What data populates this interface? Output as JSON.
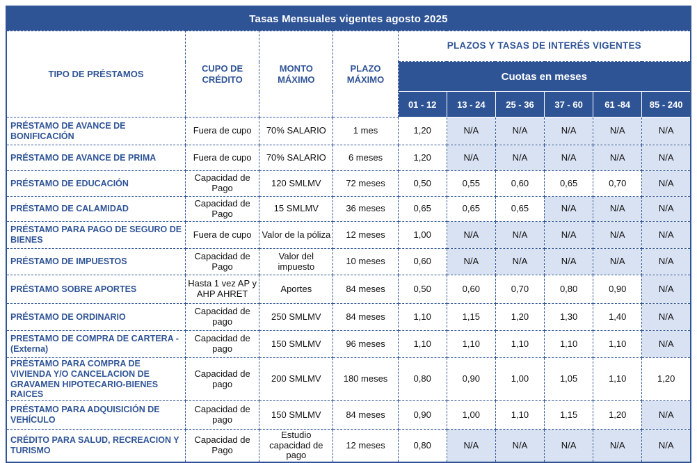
{
  "title": "Tasas Mensuales vigentes agosto 2025",
  "colors": {
    "header_blue": "#2F5496",
    "na_cell_bg": "#D9E2F3",
    "loan_text_blue": "#2F5496",
    "border_blue": "#2F5496"
  },
  "table": {
    "columns": {
      "tipo": "TIPO DE PRÉSTAMOS",
      "cupo": "CUPO DE CRÉDITO",
      "monto": "MONTO MÁXIMO",
      "plazo": "PLAZO MÁXIMO",
      "plazos_banner": "PLAZOS Y TASAS DE INTERÉS VIGENTES",
      "cuotas_banner": "Cuotas en meses",
      "ranges": [
        "01 - 12",
        "13 - 24",
        "25 - 36",
        "37 - 60",
        "61 -84",
        "85 - 240"
      ]
    },
    "rows": [
      {
        "name": "PRÉSTAMO DE AVANCE DE BONIFICACIÓN",
        "cupo": "Fuera de cupo",
        "monto": "70% SALARIO",
        "plazo": "1 mes",
        "rates": [
          "1,20",
          "N/A",
          "N/A",
          "N/A",
          "N/A",
          "N/A"
        ]
      },
      {
        "name": "PRÉSTAMO DE AVANCE DE PRIMA",
        "cupo": "Fuera de cupo",
        "monto": "70% SALARIO",
        "plazo": "6 meses",
        "rates": [
          "1,20",
          "N/A",
          "N/A",
          "N/A",
          "N/A",
          "N/A"
        ]
      },
      {
        "name": "PRÉSTAMO DE EDUCACIÓN",
        "cupo": "Capacidad de Pago",
        "monto": "120 SMLMV",
        "plazo": "72 meses",
        "rates": [
          "0,50",
          "0,55",
          "0,60",
          "0,65",
          "0,70",
          "N/A"
        ]
      },
      {
        "name": "PRÉSTAMO DE CALAMIDAD",
        "cupo": "Capacidad de Pago",
        "monto": "15 SMLMV",
        "plazo": "36 meses",
        "rates": [
          "0,65",
          "0,65",
          "0,65",
          "N/A",
          "N/A",
          "N/A"
        ]
      },
      {
        "name": "PRÉSTAMO PARA PAGO DE SEGURO DE BIENES",
        "cupo": "Fuera de cupo",
        "monto": "Valor de la póliza",
        "plazo": "12 meses",
        "rates": [
          "1,00",
          "N/A",
          "N/A",
          "N/A",
          "N/A",
          "N/A"
        ]
      },
      {
        "name": "PRÉSTAMO DE IMPUESTOS",
        "cupo": "Capacidad de Pago",
        "monto": "Valor del impuesto",
        "plazo": "10 meses",
        "rates": [
          "0,60",
          "N/A",
          "N/A",
          "N/A",
          "N/A",
          "N/A"
        ]
      },
      {
        "name": "PRÉSTAMO SOBRE APORTES",
        "cupo": "Hasta 1 vez AP y AHP AHRET",
        "monto": "Aportes",
        "plazo": "84 meses",
        "rates": [
          "0,50",
          "0,60",
          "0,70",
          "0,80",
          "0,90",
          "N/A"
        ]
      },
      {
        "name": "PRÉSTAMO DE ORDINARIO",
        "cupo": "Capacidad de pago",
        "monto": "250 SMLMV",
        "plazo": "84 meses",
        "rates": [
          "1,10",
          "1,15",
          "1,20",
          "1,30",
          "1,40",
          "N/A"
        ]
      },
      {
        "name": "PRESTAMO DE COMPRA DE CARTERA - (Externa)",
        "cupo": "Capacidad de pago",
        "monto": "150 SMLMV",
        "plazo": "96 meses",
        "rates": [
          "1,10",
          "1,10",
          "1,10",
          "1,10",
          "1,10",
          "N/A"
        ]
      },
      {
        "name": "PRÉSTAMO PARA COMPRA DE VIVIENDA Y/O CANCELACION DE GRAVAMEN HIPOTECARIO-BIENES RAICES",
        "cupo": "Capacidad de pago",
        "monto": "200 SMLMV",
        "plazo": "180 meses",
        "rates": [
          "0,80",
          "0,90",
          "1,00",
          "1,05",
          "1,10",
          "1,20"
        ]
      },
      {
        "name": "PRÉSTAMO PARA ADQUISICIÓN DE VEHÍCULO",
        "cupo": "Capacidad de pago",
        "monto": "150 SMLMV",
        "plazo": "84 meses",
        "rates": [
          "0,90",
          "1,00",
          "1,10",
          "1,15",
          "1,20",
          "N/A"
        ]
      },
      {
        "name": "CRÉDITO PARA SALUD, RECREACION Y TURISMO",
        "cupo": "Capacidad de Pago",
        "monto": "Estudio capacidad de pago",
        "plazo": "12 meses",
        "rates": [
          "0,80",
          "N/A",
          "N/A",
          "N/A",
          "N/A",
          "N/A"
        ]
      }
    ]
  }
}
